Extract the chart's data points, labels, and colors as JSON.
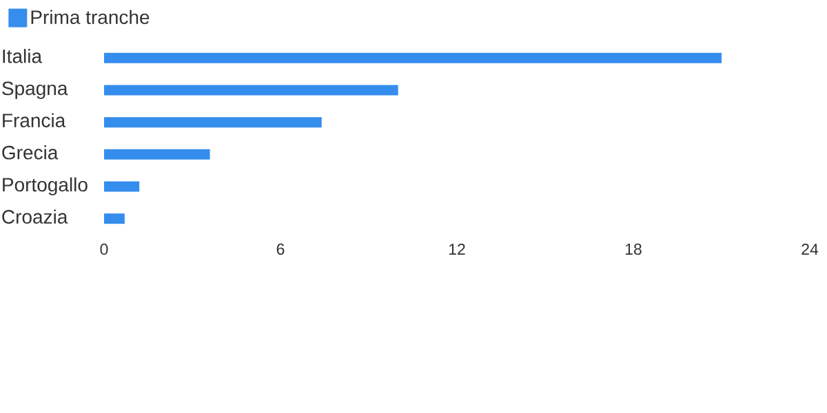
{
  "chart_data": {
    "type": "bar",
    "orientation": "horizontal",
    "categories": [
      "Italia",
      "Spagna",
      "Francia",
      "Grecia",
      "Portogallo",
      "Croazia"
    ],
    "series": [
      {
        "name": "Prima tranche",
        "color": "#358ded",
        "values": [
          21,
          10,
          7.4,
          3.6,
          1.2,
          0.7
        ]
      }
    ],
    "xlim": [
      0,
      24
    ],
    "xticks": [
      0,
      6,
      12,
      18,
      24
    ],
    "legend": "top left"
  }
}
